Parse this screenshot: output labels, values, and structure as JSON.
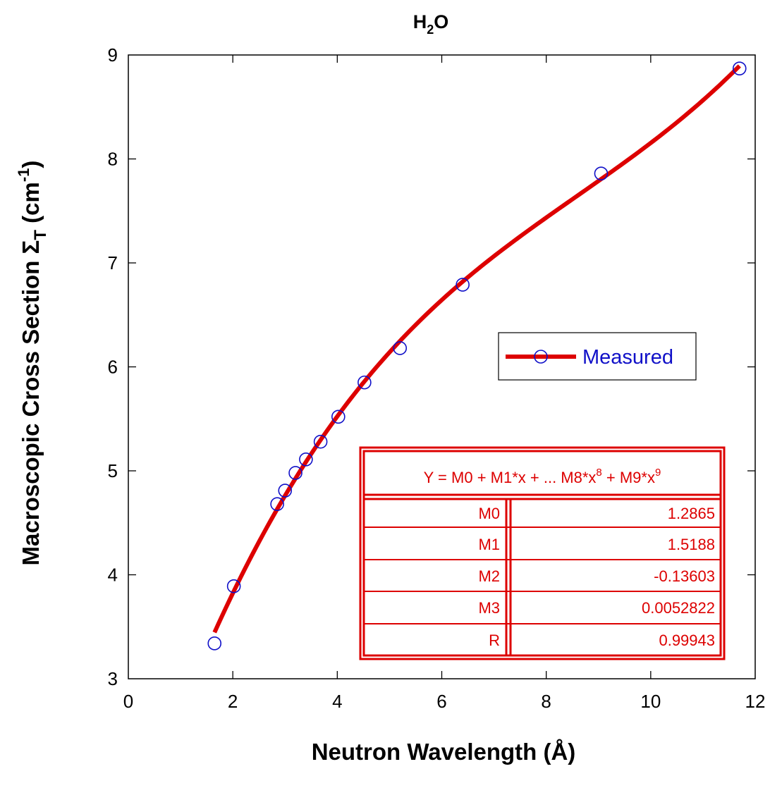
{
  "chart_data": {
    "type": "scatter",
    "title_main": "H",
    "title_sub": "2",
    "title_tail": "O",
    "xlabel": "Neutron Wavelength (Å)",
    "ylabel_main": "Macroscopic Cross Section Σ",
    "ylabel_sub": "T",
    "ylabel_open": " (cm",
    "ylabel_sup": "-1",
    "ylabel_close": ")",
    "xlim": [
      0,
      12
    ],
    "ylim": [
      3,
      9
    ],
    "xticks": [
      "0",
      "2",
      "4",
      "6",
      "8",
      "10",
      "12"
    ],
    "yticks": [
      "3",
      "4",
      "5",
      "6",
      "7",
      "8",
      "9"
    ],
    "x_tick_values": [
      0,
      2,
      4,
      6,
      8,
      10,
      12
    ],
    "y_tick_values": [
      3,
      4,
      5,
      6,
      7,
      8,
      9
    ],
    "series": [
      {
        "name": "Measured",
        "marker": "circle-open",
        "marker_color": "#1010c8",
        "line_color": "#dd0000",
        "x": [
          1.65,
          2.02,
          2.85,
          3.0,
          3.2,
          3.4,
          3.68,
          4.02,
          4.52,
          5.2,
          6.4,
          9.05,
          11.7
        ],
        "y": [
          3.34,
          3.89,
          4.68,
          4.81,
          4.98,
          5.11,
          5.28,
          5.52,
          5.85,
          6.18,
          6.79,
          7.86,
          8.87
        ]
      }
    ],
    "fit": {
      "coefficients": [
        1.2865,
        1.5188,
        -0.13603,
        0.0052822
      ],
      "x_range": [
        1.65,
        11.7
      ],
      "color": "#dd0000"
    },
    "legend": {
      "label": "Measured",
      "position": "right-middle"
    },
    "fit_table": {
      "equation_main": "Y = M0 + M1*x + ... M8*x",
      "equation_sup1": "8",
      "equation_mid": " + M9*x",
      "equation_sup2": "9",
      "rows": [
        {
          "name": "M0",
          "value": "1.2865"
        },
        {
          "name": "M1",
          "value": "1.5188"
        },
        {
          "name": "M2",
          "value": "-0.13603"
        },
        {
          "name": "M3",
          "value": "0.0052822"
        },
        {
          "name": "R",
          "value": "0.99943"
        }
      ],
      "color": "#dd0000"
    },
    "grid": false
  }
}
